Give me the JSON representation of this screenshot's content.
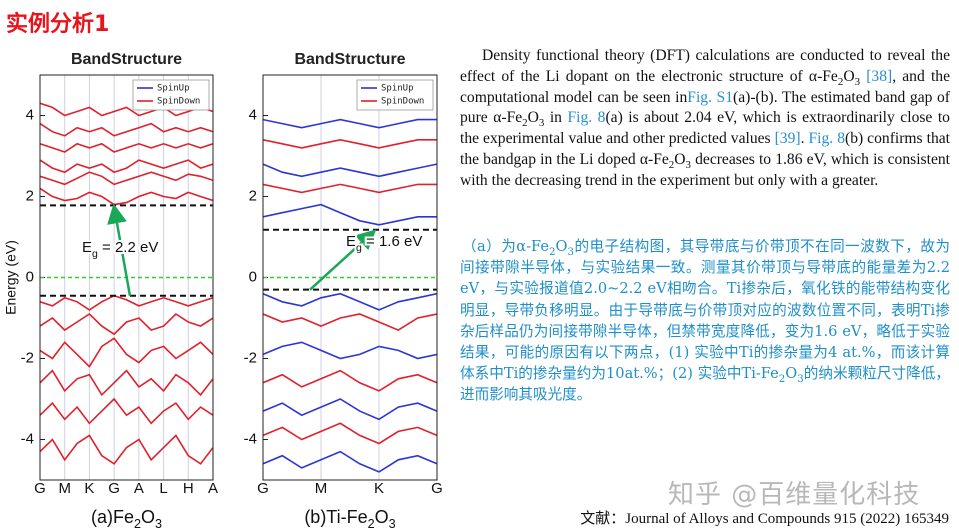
{
  "header": {
    "title": "实例分析1"
  },
  "chart_data": [
    {
      "type": "line",
      "title": "BandStructure",
      "y_label": "Energy (eV)",
      "categories": [
        "G",
        null,
        "M",
        null,
        "K",
        null,
        "G",
        null,
        "A",
        null,
        "L",
        null,
        "H",
        null,
        "A"
      ],
      "ylim": [
        -5,
        5
      ],
      "yticks": [
        -4,
        -2,
        0,
        2,
        4
      ],
      "grid": true,
      "legend": "upper right",
      "fermi_level": 0,
      "fermi_color": "#33cc33",
      "dashed_lines": [
        1.78,
        -0.45
      ],
      "annotation": [
        {
          "text": "E"
        },
        {
          "text": "g",
          "kind": "sub"
        },
        {
          "text": " = 2.2 eV"
        }
      ],
      "caption": [
        {
          "text": "(a)Fe"
        },
        {
          "text": "2",
          "kind": "sub"
        },
        {
          "text": "O"
        },
        {
          "text": "3",
          "kind": "sub"
        }
      ],
      "series": [
        {
          "name": "SpinUp",
          "color": "#2a35d8",
          "bands": []
        },
        {
          "name": "SpinDown",
          "color": "#e0202a",
          "bands": [
            [
              2.2,
              2.0,
              1.9,
              1.95,
              2.1,
              2.0,
              1.8,
              1.85,
              2.0,
              2.1,
              2.0,
              1.95,
              2.1,
              2.0,
              1.9
            ],
            [
              2.5,
              2.4,
              2.3,
              2.45,
              2.6,
              2.5,
              2.3,
              2.4,
              2.5,
              2.6,
              2.5,
              2.4,
              2.55,
              2.5,
              2.4
            ],
            [
              2.9,
              2.7,
              2.6,
              2.8,
              2.7,
              2.8,
              2.6,
              2.7,
              2.9,
              2.8,
              2.7,
              2.8,
              2.9,
              2.7,
              2.8
            ],
            [
              3.3,
              3.2,
              3.1,
              3.3,
              3.2,
              3.3,
              3.1,
              3.2,
              3.3,
              3.2,
              3.3,
              3.2,
              3.3,
              3.2,
              3.3
            ],
            [
              3.8,
              3.6,
              3.5,
              3.7,
              3.6,
              3.7,
              3.5,
              3.6,
              3.7,
              3.8,
              3.6,
              3.7,
              3.6,
              3.7,
              3.6
            ],
            [
              4.3,
              4.2,
              4.0,
              4.1,
              4.2,
              4.0,
              4.1,
              4.2,
              4.0,
              4.1,
              4.2,
              4.0,
              4.1,
              4.2,
              4.1
            ],
            [
              -0.6,
              -0.7,
              -0.5,
              -0.6,
              -0.8,
              -0.6,
              -0.45,
              -0.55,
              -0.7,
              -0.6,
              -0.5,
              -0.6,
              -0.7,
              -0.6,
              -0.5
            ],
            [
              -1.2,
              -1.0,
              -1.3,
              -1.1,
              -0.9,
              -1.2,
              -1.4,
              -1.1,
              -1.0,
              -1.3,
              -1.2,
              -0.9,
              -1.1,
              -1.2,
              -1.0
            ],
            [
              -1.8,
              -2.0,
              -1.6,
              -1.9,
              -2.2,
              -1.7,
              -1.5,
              -1.9,
              -2.1,
              -1.8,
              -1.7,
              -2.0,
              -1.8,
              -1.6,
              -1.9
            ],
            [
              -2.6,
              -2.3,
              -2.8,
              -2.5,
              -2.4,
              -2.9,
              -2.6,
              -2.3,
              -2.7,
              -2.5,
              -2.8,
              -2.4,
              -2.6,
              -2.9,
              -2.5
            ],
            [
              -3.4,
              -3.1,
              -3.5,
              -3.2,
              -3.6,
              -3.3,
              -3.0,
              -3.4,
              -3.2,
              -3.6,
              -3.3,
              -3.1,
              -3.5,
              -3.2,
              -3.4
            ],
            [
              -4.3,
              -4.0,
              -4.5,
              -4.1,
              -3.9,
              -4.4,
              -4.6,
              -4.2,
              -4.0,
              -4.5,
              -4.2,
              -3.9,
              -4.4,
              -4.6,
              -4.2
            ]
          ]
        }
      ]
    },
    {
      "type": "line",
      "title": "BandStructure",
      "categories": [
        "G",
        null,
        null,
        "M",
        null,
        null,
        "K",
        null,
        null,
        "G"
      ],
      "ylim": [
        -5,
        5
      ],
      "yticks": [
        -4,
        -2,
        0,
        2,
        4
      ],
      "grid": true,
      "legend": "upper right",
      "fermi_level": 0,
      "fermi_color": "#33cc33",
      "dashed_lines": [
        1.18,
        -0.3
      ],
      "annotation": [
        {
          "text": "E"
        },
        {
          "text": "g",
          "kind": "sub"
        },
        {
          "text": " = 1.6 eV"
        }
      ],
      "caption": [
        {
          "text": "(b)Ti-Fe"
        },
        {
          "text": "2",
          "kind": "sub"
        },
        {
          "text": "O"
        },
        {
          "text": "3",
          "kind": "sub"
        }
      ],
      "series": [
        {
          "name": "SpinUp",
          "color": "#2a35d8",
          "bands": [
            [
              3.9,
              3.8,
              3.7,
              3.8,
              3.9,
              3.8,
              3.7,
              3.8,
              3.9,
              3.9
            ],
            [
              2.8,
              2.6,
              2.5,
              2.6,
              2.7,
              2.6,
              2.5,
              2.6,
              2.7,
              2.8
            ],
            [
              1.5,
              1.6,
              1.7,
              1.8,
              1.6,
              1.4,
              1.3,
              1.4,
              1.5,
              1.5
            ],
            [
              -0.4,
              -0.6,
              -0.7,
              -0.5,
              -0.4,
              -0.6,
              -0.8,
              -0.6,
              -0.5,
              -0.4
            ],
            [
              -1.9,
              -1.7,
              -1.6,
              -1.8,
              -2.0,
              -1.9,
              -1.7,
              -1.8,
              -2.0,
              -1.9
            ],
            [
              -3.3,
              -3.1,
              -3.4,
              -3.2,
              -3.0,
              -3.3,
              -3.5,
              -3.2,
              -3.1,
              -3.3
            ],
            [
              -4.6,
              -4.4,
              -4.7,
              -4.5,
              -4.3,
              -4.6,
              -4.8,
              -4.5,
              -4.4,
              -4.6
            ]
          ]
        },
        {
          "name": "SpinDown",
          "color": "#e0202a",
          "bands": [
            [
              3.4,
              3.3,
              3.2,
              3.3,
              3.4,
              3.3,
              3.2,
              3.3,
              3.4,
              3.4
            ],
            [
              2.3,
              2.2,
              2.1,
              2.2,
              2.3,
              2.2,
              2.1,
              2.2,
              2.3,
              2.3
            ],
            [
              -0.9,
              -1.1,
              -1.0,
              -1.2,
              -1.0,
              -0.9,
              -1.1,
              -1.3,
              -1.0,
              -0.9
            ],
            [
              -2.6,
              -2.4,
              -2.7,
              -2.5,
              -2.3,
              -2.6,
              -2.8,
              -2.5,
              -2.4,
              -2.6
            ],
            [
              -3.9,
              -3.7,
              -4.0,
              -3.8,
              -3.6,
              -3.9,
              -4.1,
              -3.8,
              -3.7,
              -3.9
            ]
          ]
        }
      ]
    }
  ],
  "paragraphs": [
    [
      {
        "text": "Density functional theory (DFT) calculations are conducted to reveal the effect of the Li dopant on the electronic structure of α-Fe"
      },
      {
        "text": "2",
        "kind": "sub"
      },
      {
        "text": "O"
      },
      {
        "text": "3",
        "kind": "sub"
      },
      {
        "text": " "
      },
      {
        "text": "[38]",
        "kind": "link"
      },
      {
        "text": ", and the computational model can be seen in"
      },
      {
        "text": "Fig. S1",
        "kind": "link"
      },
      {
        "text": "(a)-(b). The estimated band gap of pure α-Fe"
      },
      {
        "text": "2",
        "kind": "sub"
      },
      {
        "text": "O"
      },
      {
        "text": "3",
        "kind": "sub"
      },
      {
        "text": " in "
      },
      {
        "text": "Fig. 8",
        "kind": "link"
      },
      {
        "text": "(a) is about 2.04 eV, which is extraordinarily close to the experimental value and other predicted values "
      },
      {
        "text": "[39]",
        "kind": "link"
      },
      {
        "text": ". "
      },
      {
        "text": "Fig. 8",
        "kind": "link"
      },
      {
        "text": "(b) confirms that the bandgap in the Li doped α-Fe"
      },
      {
        "text": "2",
        "kind": "sub"
      },
      {
        "text": "O"
      },
      {
        "text": "3",
        "kind": "sub"
      },
      {
        "text": " decreases to 1.86 eV, which is consistent with the decreasing trend in the experiment but only with a greater."
      }
    ],
    [
      {
        "text": "（a）为α-Fe"
      },
      {
        "text": "2",
        "kind": "sub"
      },
      {
        "text": "O"
      },
      {
        "text": "3",
        "kind": "sub"
      },
      {
        "text": "的电子结构图，其导带底与价带顶不在同一波数下，故为间接带隙半导体，与实验结果一致。测量其价带顶与导带底的能量差为2.2 eV，与实验报道值2.0~2.2 eV相吻合。Ti掺杂后，氧化铁的能带结构变化明显，导带负移明显。由于导带底与价带顶对应的波数位置不同，表明Ti掺杂后样品仍为间接带隙半导体，但禁带宽度降低，变为1.6 eV，略低于实验结果，可能的原因有以下两点，(1) 实验中Ti的掺杂量为4 at.%，而该计算体系中Ti的掺杂量约为10at.%；(2) 实验中Ti-Fe"
      },
      {
        "text": "2",
        "kind": "sub"
      },
      {
        "text": "O"
      },
      {
        "text": "3",
        "kind": "sub"
      },
      {
        "text": "的纳米颗粒尺寸降低，进而影响其吸光度。"
      }
    ]
  ],
  "watermark": "知乎 @百维量化科技",
  "citation": "文献：Journal of Alloys and Compounds 915 (2022) 165349"
}
